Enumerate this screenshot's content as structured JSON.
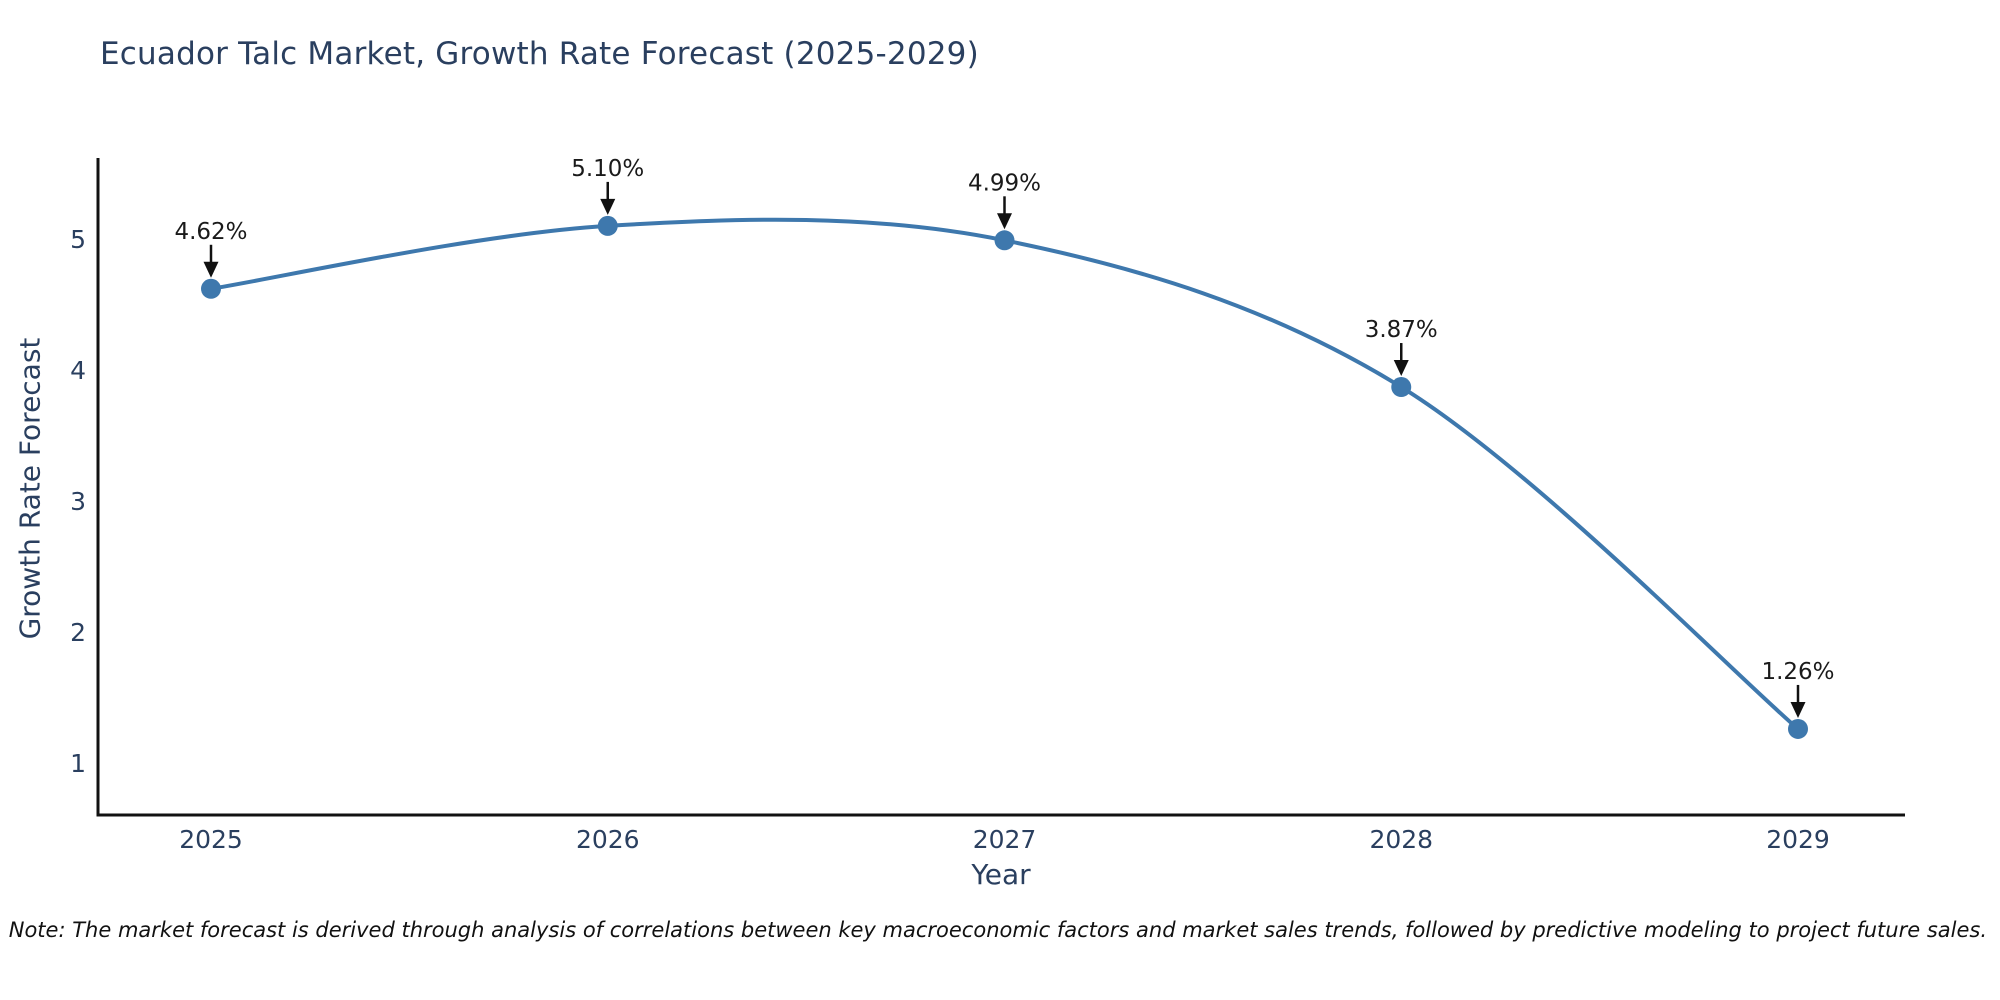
{
  "chart_data": {
    "type": "line",
    "title": "Ecuador Talc Market, Growth Rate Forecast (2025-2029)",
    "xlabel": "Year",
    "ylabel": "Growth Rate Forecast",
    "categories": [
      "2025",
      "2026",
      "2027",
      "2028",
      "2029"
    ],
    "x": [
      2025,
      2026,
      2027,
      2028,
      2029
    ],
    "series": [
      {
        "name": "Growth Rate Forecast",
        "values": [
          4.62,
          5.1,
          4.99,
          3.87,
          1.26
        ],
        "point_labels": [
          "4.62%",
          "5.10%",
          "4.99%",
          "3.87%",
          "1.26%"
        ]
      }
    ],
    "yticks": [
      1,
      2,
      3,
      4,
      5
    ],
    "ylim": [
      0.6,
      5.62
    ],
    "xlim": [
      2024.72,
      2029.27
    ],
    "line_shape": "spline",
    "markers": true,
    "grid": false,
    "legend_visible": false,
    "annotation_arrows": true
  },
  "note": "Note: The market forecast is derived through analysis of correlations between key macroeconomic factors and market sales trends, followed by predictive modeling to project future sales.",
  "colors": {
    "line": "#3e78ad",
    "marker": "#3e78ad",
    "axis_line": "#111111",
    "heading_text": "#2a3f5f",
    "tick_text": "#2a3f5f",
    "annotation_text": "#1a1a1a",
    "arrow": "#111111",
    "note_text": "#111111",
    "background": "#ffffff"
  }
}
